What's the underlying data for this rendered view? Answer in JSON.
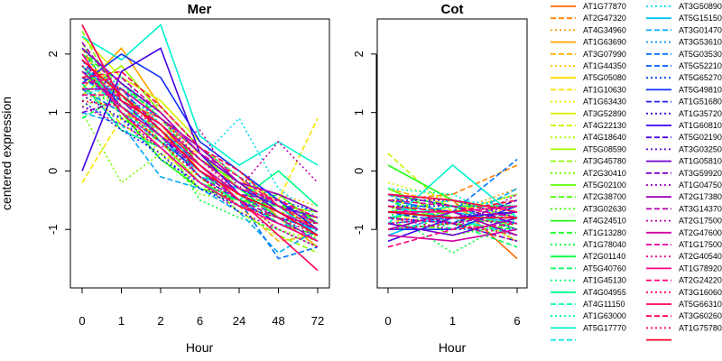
{
  "chart_data": [
    {
      "type": "line",
      "title": "Mer",
      "xlabel": "Hour",
      "ylabel": "centered expression",
      "categories": [
        "0",
        "1",
        "2",
        "6",
        "24",
        "48",
        "72"
      ],
      "ylim": [
        -2,
        2.6
      ],
      "yticks": [
        -1,
        0,
        1,
        2
      ],
      "series": [
        {
          "name": "AT1G77870",
          "color": "#ff6a00",
          "dash": "solid",
          "values": [
            2.5,
            1.2,
            0.9,
            0.3,
            -0.2,
            -0.6,
            -0.9
          ]
        },
        {
          "name": "AT2G47320",
          "color": "#ff8000",
          "dash": "dashed",
          "values": [
            2.1,
            1.0,
            0.7,
            0.2,
            -0.3,
            -0.7,
            -1.0
          ]
        },
        {
          "name": "AT4G34960",
          "color": "#ff9500",
          "dash": "dotted",
          "values": [
            1.6,
            1.4,
            0.6,
            0.1,
            -0.4,
            -0.5,
            -0.8
          ]
        },
        {
          "name": "AT1G63690",
          "color": "#ffa500",
          "dash": "solid",
          "values": [
            1.4,
            2.1,
            1.1,
            0.4,
            -0.1,
            -0.8,
            -1.3
          ]
        },
        {
          "name": "AT3G07990",
          "color": "#ffb000",
          "dash": "dashed",
          "values": [
            1.8,
            1.1,
            0.5,
            -0.2,
            -0.6,
            -1.2,
            -1.1
          ]
        },
        {
          "name": "AT1G44350",
          "color": "#ffc400",
          "dash": "dotted",
          "values": [
            1.2,
            1.5,
            0.9,
            0.2,
            -0.3,
            -0.4,
            -0.6
          ]
        },
        {
          "name": "AT5G05080",
          "color": "#ffd800",
          "dash": "solid",
          "values": [
            2.0,
            1.3,
            0.8,
            0.0,
            -0.5,
            -0.9,
            -1.2
          ]
        },
        {
          "name": "AT1G10630",
          "color": "#f6e400",
          "dash": "dashed",
          "values": [
            -0.2,
            0.9,
            0.6,
            0.3,
            -0.2,
            -0.5,
            0.9
          ]
        },
        {
          "name": "AT1G63430",
          "color": "#eaef00",
          "dash": "dotted",
          "values": [
            1.7,
            1.0,
            0.3,
            -0.1,
            -0.6,
            -0.9,
            -1.1
          ]
        },
        {
          "name": "AT3G52890",
          "color": "#d8f200",
          "dash": "solid",
          "values": [
            2.3,
            1.6,
            1.2,
            0.5,
            0.0,
            -0.6,
            -1.0
          ]
        },
        {
          "name": "AT4G22130",
          "color": "#c4f500",
          "dash": "dashed",
          "values": [
            1.5,
            0.8,
            0.4,
            -0.3,
            -0.4,
            -0.7,
            -0.9
          ]
        },
        {
          "name": "AT4G18640",
          "color": "#b0f800",
          "dash": "dotted",
          "values": [
            1.9,
            1.2,
            0.6,
            0.1,
            -0.5,
            -1.0,
            -1.2
          ]
        },
        {
          "name": "AT5G08590",
          "color": "#9cfa00",
          "dash": "solid",
          "values": [
            1.3,
            1.8,
            1.0,
            0.3,
            -0.3,
            -0.6,
            -0.7
          ]
        },
        {
          "name": "AT3G45780",
          "color": "#88fc00",
          "dash": "dashed",
          "values": [
            2.4,
            1.1,
            0.7,
            -0.1,
            -0.7,
            -1.1,
            -1.4
          ]
        },
        {
          "name": "AT2G30410",
          "color": "#74fd00",
          "dash": "dotted",
          "values": [
            1.0,
            -0.2,
            0.3,
            -0.4,
            -0.5,
            -0.7,
            -0.8
          ]
        },
        {
          "name": "AT5G02100",
          "color": "#60fe00",
          "dash": "solid",
          "values": [
            1.6,
            1.3,
            0.8,
            0.2,
            -0.2,
            -0.4,
            -0.9
          ]
        },
        {
          "name": "AT2G38700",
          "color": "#4cff00",
          "dash": "dashed",
          "values": [
            2.2,
            0.9,
            0.5,
            -0.2,
            -0.6,
            -0.8,
            -1.0
          ]
        },
        {
          "name": "AT3G02630",
          "color": "#38ff00",
          "dash": "dotted",
          "values": [
            1.1,
            1.4,
            1.1,
            0.4,
            -0.1,
            -0.5,
            -1.2
          ]
        },
        {
          "name": "AT4G24510",
          "color": "#24ff10",
          "dash": "solid",
          "values": [
            1.8,
            1.0,
            0.2,
            -0.3,
            -0.5,
            -0.6,
            -0.8
          ]
        },
        {
          "name": "AT1G13280",
          "color": "#10ff20",
          "dash": "dashed",
          "values": [
            2.0,
            1.5,
            0.9,
            0.1,
            -0.4,
            -0.9,
            -1.1
          ]
        },
        {
          "name": "AT1G78040",
          "color": "#00ff30",
          "dash": "dotted",
          "values": [
            1.4,
            1.1,
            0.6,
            -0.5,
            -0.8,
            -1.0,
            -1.3
          ]
        },
        {
          "name": "AT2G01140",
          "color": "#00fe45",
          "dash": "solid",
          "values": [
            1.7,
            1.2,
            0.8,
            0.2,
            -0.3,
            -0.8,
            -1.0
          ]
        },
        {
          "name": "AT5G40760",
          "color": "#00fd5a",
          "dash": "dashed",
          "values": [
            0.9,
            1.3,
            0.5,
            0.0,
            -0.6,
            -0.4,
            -0.7
          ]
        },
        {
          "name": "AT1G45130",
          "color": "#00fc70",
          "dash": "dotted",
          "values": [
            2.1,
            1.4,
            1.0,
            0.3,
            -0.2,
            -0.7,
            -1.1
          ]
        },
        {
          "name": "AT4G04955",
          "color": "#00fb88",
          "dash": "solid",
          "values": [
            1.5,
            0.7,
            0.4,
            -0.2,
            -0.5,
            0.0,
            -0.6
          ]
        },
        {
          "name": "AT4G11150",
          "color": "#00f9a0",
          "dash": "dashed",
          "values": [
            1.9,
            1.0,
            0.6,
            0.0,
            -0.4,
            -0.8,
            -1.2
          ]
        },
        {
          "name": "AT1G63000",
          "color": "#00f6b8",
          "dash": "dotted",
          "values": [
            1.2,
            1.6,
            0.9,
            0.4,
            -0.1,
            -0.5,
            -0.9
          ]
        },
        {
          "name": "AT5G17770",
          "color": "#00f2cf",
          "dash": "solid",
          "values": [
            2.3,
            1.9,
            2.5,
            0.6,
            0.1,
            0.5,
            0.1
          ]
        },
        {
          "name": "",
          "color": "#00ede5",
          "dash": "dashed",
          "values": [
            1.6,
            1.1,
            0.7,
            0.1,
            -0.5,
            -0.9,
            -1.0
          ]
        },
        {
          "name": "AT3G50890",
          "color": "#00dcf5",
          "dash": "dotted",
          "values": [
            1.3,
            1.5,
            0.8,
            0.2,
            0.9,
            -0.3,
            -0.8
          ]
        },
        {
          "name": "AT5G15150",
          "color": "#00c2f8",
          "dash": "solid",
          "values": [
            1.8,
            1.2,
            0.6,
            -0.1,
            -0.3,
            -0.6,
            -1.1
          ]
        },
        {
          "name": "AT3G01470",
          "color": "#00a8fb",
          "dash": "dashed",
          "values": [
            1.0,
            0.8,
            -0.1,
            -0.3,
            -0.7,
            -1.4,
            -1.0
          ]
        },
        {
          "name": "AT3G53610",
          "color": "#008efd",
          "dash": "dotted",
          "values": [
            2.0,
            1.3,
            0.9,
            0.3,
            -0.2,
            -0.6,
            -0.9
          ]
        },
        {
          "name": "AT5G03530",
          "color": "#0074fe",
          "dash": "dashed",
          "values": [
            1.4,
            1.0,
            0.5,
            0.0,
            -0.5,
            -1.5,
            -1.3
          ]
        },
        {
          "name": "AT5G52210",
          "color": "#005aff",
          "dash": "dashed",
          "values": [
            1.7,
            1.4,
            0.7,
            0.1,
            -0.4,
            -0.8,
            -1.0
          ]
        },
        {
          "name": "AT5G65270",
          "color": "#0040ff",
          "dash": "dotted",
          "values": [
            1.1,
            0.9,
            0.2,
            -0.2,
            -0.6,
            -0.5,
            -0.7
          ]
        },
        {
          "name": "AT5G49810",
          "color": "#1030ff",
          "dash": "solid",
          "values": [
            1.5,
            2.0,
            1.6,
            0.5,
            0.0,
            -0.5,
            -1.0
          ]
        },
        {
          "name": "AT1G51680",
          "color": "#2020f8",
          "dash": "dashed",
          "values": [
            1.9,
            1.1,
            0.6,
            -0.1,
            -0.5,
            -0.9,
            -1.2
          ]
        },
        {
          "name": "AT1G35720",
          "color": "#3010f0",
          "dash": "dotted",
          "values": [
            1.2,
            0.7,
            0.3,
            -0.3,
            -0.6,
            -0.8,
            -0.9
          ]
        },
        {
          "name": "AT1G60810",
          "color": "#4000e8",
          "dash": "solid",
          "values": [
            0.0,
            1.7,
            2.1,
            0.3,
            -0.4,
            -0.7,
            -1.1
          ]
        },
        {
          "name": "AT5G02190",
          "color": "#5000e0",
          "dash": "dashed",
          "values": [
            1.6,
            1.2,
            0.8,
            0.2,
            -0.3,
            -0.6,
            -0.8
          ]
        },
        {
          "name": "AT3G03250",
          "color": "#6000d8",
          "dash": "dotted",
          "values": [
            1.3,
            0.9,
            0.4,
            -0.2,
            -0.7,
            -1.0,
            -1.3
          ]
        },
        {
          "name": "AT1G05810",
          "color": "#7000d0",
          "dash": "solid",
          "values": [
            2.1,
            1.5,
            1.0,
            0.3,
            -0.2,
            -0.7,
            -1.0
          ]
        },
        {
          "name": "AT3G59920",
          "color": "#8000c8",
          "dash": "dashed",
          "values": [
            1.0,
            1.2,
            0.6,
            0.0,
            -0.4,
            -0.5,
            -0.9
          ]
        },
        {
          "name": "AT1G04750",
          "color": "#9000c0",
          "dash": "dotted",
          "values": [
            1.8,
            1.0,
            0.5,
            -0.1,
            -0.6,
            -0.9,
            -1.1
          ]
        },
        {
          "name": "AT2G17380",
          "color": "#a000b8",
          "dash": "solid",
          "values": [
            1.4,
            1.4,
            0.9,
            0.4,
            -0.2,
            -0.4,
            -0.7
          ]
        },
        {
          "name": "AT3G14370",
          "color": "#b000b0",
          "dash": "dashed",
          "values": [
            2.2,
            1.3,
            0.7,
            0.0,
            -0.5,
            -0.8,
            -1.2
          ]
        },
        {
          "name": "AT2G17500",
          "color": "#c000a8",
          "dash": "dotted",
          "values": [
            1.1,
            0.8,
            0.4,
            0.7,
            -0.3,
            0.5,
            -0.2
          ]
        },
        {
          "name": "AT2G47600",
          "color": "#d000a0",
          "dash": "solid",
          "values": [
            1.7,
            1.1,
            0.6,
            0.1,
            -0.4,
            -0.7,
            -1.0
          ]
        },
        {
          "name": "AT1G17500",
          "color": "#e00098",
          "dash": "dashed",
          "values": [
            1.5,
            1.6,
            1.0,
            0.3,
            -0.1,
            -0.6,
            -0.9
          ]
        },
        {
          "name": "AT2G40540",
          "color": "#f00090",
          "dash": "dotted",
          "values": [
            1.9,
            1.2,
            0.7,
            -0.1,
            -0.5,
            -1.0,
            -1.3
          ]
        },
        {
          "name": "AT1G78920",
          "color": "#ff0088",
          "dash": "solid",
          "values": [
            2.0,
            1.0,
            0.4,
            -0.2,
            -0.6,
            -0.9,
            -1.2
          ]
        },
        {
          "name": "AT2G24220",
          "color": "#ff0078",
          "dash": "dashed",
          "values": [
            1.3,
            1.3,
            0.8,
            0.2,
            -0.3,
            -0.5,
            -0.8
          ]
        },
        {
          "name": "AT3G16060",
          "color": "#ff0068",
          "dash": "dotted",
          "values": [
            1.8,
            1.4,
            0.9,
            0.2,
            -0.4,
            -0.8,
            -1.1
          ]
        },
        {
          "name": "AT5G66310",
          "color": "#ff0058",
          "dash": "solid",
          "values": [
            2.5,
            1.2,
            0.8,
            0.1,
            -0.5,
            -1.1,
            -1.7
          ]
        },
        {
          "name": "AT3G60260",
          "color": "#ff0048",
          "dash": "dashed",
          "values": [
            1.6,
            1.7,
            1.1,
            0.4,
            0.0,
            -0.6,
            -1.0
          ]
        },
        {
          "name": "AT1G75780",
          "color": "#ff0038",
          "dash": "dotted",
          "values": [
            1.2,
            1.1,
            0.5,
            -0.1,
            -0.6,
            -0.8,
            -0.9
          ]
        },
        {
          "name": "",
          "color": "#ff0028",
          "dash": "solid",
          "values": [
            1.9,
            1.3,
            0.7,
            0.0,
            -0.4,
            -0.7,
            -1.1
          ]
        }
      ]
    },
    {
      "type": "line",
      "title": "Cot",
      "xlabel": "Hour",
      "categories": [
        "0",
        "1",
        "6"
      ],
      "ylim": [
        -2,
        2.6
      ],
      "yticks": [
        -1,
        0,
        1,
        2
      ],
      "series_values": [
        [
          -0.4,
          -0.5,
          -1.5
        ],
        [
          -0.5,
          -0.4,
          0.1
        ],
        [
          -0.6,
          -0.7,
          -0.3
        ],
        [
          -0.7,
          -0.8,
          -0.9
        ],
        [
          -0.3,
          -0.6,
          -1.2
        ],
        [
          -0.8,
          -0.9,
          -0.6
        ],
        [
          -0.5,
          -0.7,
          -0.4
        ],
        [
          -0.9,
          -0.6,
          -0.8
        ],
        [
          -0.2,
          -0.5,
          -1.0
        ],
        [
          -0.6,
          -0.8,
          -0.7
        ],
        [
          0.3,
          -0.7,
          -1.1
        ],
        [
          -0.4,
          -0.9,
          -0.5
        ],
        [
          -0.7,
          -0.5,
          -0.8
        ],
        [
          -0.9,
          -1.0,
          -0.6
        ],
        [
          -0.5,
          -0.6,
          -1.2
        ],
        [
          -0.3,
          -0.8,
          -0.9
        ],
        [
          -0.8,
          -0.7,
          -0.5
        ],
        [
          -0.6,
          -1.1,
          -0.9
        ],
        [
          0.1,
          -0.5,
          -0.7
        ],
        [
          -0.5,
          -0.9,
          -1.0
        ],
        [
          -0.7,
          -1.4,
          -0.8
        ],
        [
          -0.4,
          -0.6,
          -0.6
        ],
        [
          -1.0,
          -0.9,
          -1.3
        ],
        [
          -0.6,
          -0.7,
          -0.4
        ],
        [
          -0.8,
          -0.6,
          -1.0
        ],
        [
          -0.5,
          -1.0,
          -0.7
        ],
        [
          -0.3,
          -0.4,
          -0.9
        ],
        [
          -0.9,
          0.1,
          -0.8
        ],
        [
          -0.6,
          -0.8,
          -1.1
        ],
        [
          -0.7,
          -0.5,
          -0.6
        ],
        [
          -1.1,
          -0.7,
          -0.9
        ],
        [
          -0.4,
          -0.9,
          -0.3
        ],
        [
          -0.8,
          -1.0,
          -1.0
        ],
        [
          -0.5,
          -0.7,
          0.2
        ],
        [
          -0.9,
          -0.8,
          -0.7
        ],
        [
          -0.6,
          -0.6,
          -0.9
        ],
        [
          -1.0,
          -1.0,
          -0.6
        ],
        [
          -0.7,
          -0.9,
          -1.2
        ],
        [
          -0.5,
          -0.5,
          -0.8
        ],
        [
          -1.2,
          -0.8,
          -0.7
        ],
        [
          -0.8,
          -0.9,
          -0.5
        ],
        [
          -0.6,
          -0.7,
          -1.0
        ],
        [
          -0.9,
          -1.1,
          -0.8
        ],
        [
          -0.4,
          -0.6,
          -0.9
        ],
        [
          -0.7,
          -0.8,
          -0.6
        ],
        [
          -1.0,
          -0.7,
          -1.1
        ],
        [
          -0.6,
          -0.9,
          -0.7
        ],
        [
          -0.8,
          -1.0,
          -0.4
        ],
        [
          -1.1,
          -1.2,
          -1.0
        ],
        [
          -0.5,
          -0.6,
          -0.8
        ],
        [
          -0.9,
          -0.8,
          -0.9
        ],
        [
          -0.7,
          -0.7,
          -0.6
        ],
        [
          -1.3,
          -1.0,
          -0.9
        ],
        [
          -0.8,
          -0.9,
          -1.1
        ],
        [
          -0.4,
          -0.5,
          -0.7
        ],
        [
          -0.6,
          -0.7,
          -0.5
        ],
        [
          -1.0,
          -0.9,
          -1.2
        ],
        [
          -0.7,
          -0.8,
          -0.8
        ]
      ]
    }
  ]
}
